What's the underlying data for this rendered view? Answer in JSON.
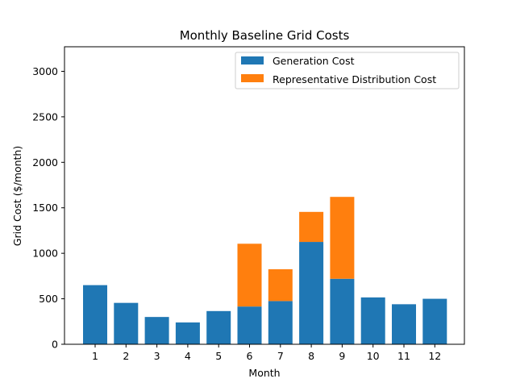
{
  "chart_data": {
    "type": "bar",
    "stacked": true,
    "title": "Monthly Baseline Grid Costs",
    "xlabel": "Month",
    "ylabel": "Grid Cost ($/month)",
    "categories": [
      "1",
      "2",
      "3",
      "4",
      "5",
      "6",
      "7",
      "8",
      "9",
      "10",
      "11",
      "12"
    ],
    "series": [
      {
        "name": "Generation Cost",
        "color": "#1f77b4",
        "values": [
          650,
          455,
          300,
          240,
          365,
          415,
          475,
          1125,
          720,
          515,
          440,
          500
        ]
      },
      {
        "name": "Representative Distribution Cost",
        "color": "#ff7f0e",
        "values": [
          0,
          0,
          0,
          0,
          0,
          690,
          350,
          330,
          900,
          0,
          0,
          0
        ]
      }
    ],
    "ylim": [
      0,
      3270
    ],
    "yticks": [
      0,
      500,
      1000,
      1500,
      2000,
      2500,
      3000
    ],
    "legend_position": "top-right",
    "grid": false
  }
}
